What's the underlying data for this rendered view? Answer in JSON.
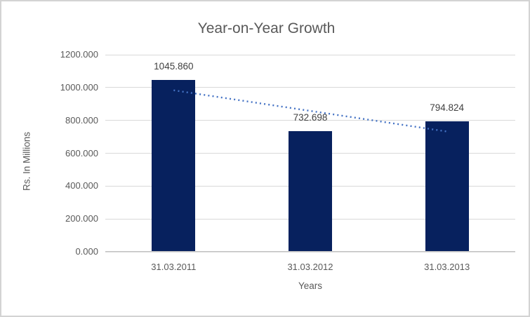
{
  "window": {
    "background": "#ffffff",
    "border_color": "#d3d3d3"
  },
  "chart_data": {
    "type": "bar",
    "title": "Year-on-Year Growth",
    "xlabel": "Years",
    "ylabel": "Rs. In Millions",
    "categories": [
      "31.03.2011",
      "31.03.2012",
      "31.03.2013"
    ],
    "values": [
      1045.86,
      732.698,
      794.824
    ],
    "data_labels": [
      "1045.860",
      "732.698",
      "794.824"
    ],
    "ylim": [
      0,
      1200
    ],
    "yticks": [
      0,
      200,
      400,
      600,
      800,
      1000,
      1200
    ],
    "ytick_labels": [
      "0.000",
      "200.000",
      "400.000",
      "600.000",
      "800.000",
      "1000.000",
      "1200.000"
    ],
    "grid": true,
    "legend": false,
    "colors": {
      "bar": "#07215e",
      "gridline": "#d9d9d9",
      "axis_line": "#c3c3c3",
      "title_text": "#595959",
      "tick_text": "#595959",
      "data_label_text": "#404040"
    },
    "trendline": {
      "type": "linear",
      "style": "dotted",
      "color": "#4472c4",
      "start_value": 983.3,
      "end_value": 732.3
    }
  }
}
